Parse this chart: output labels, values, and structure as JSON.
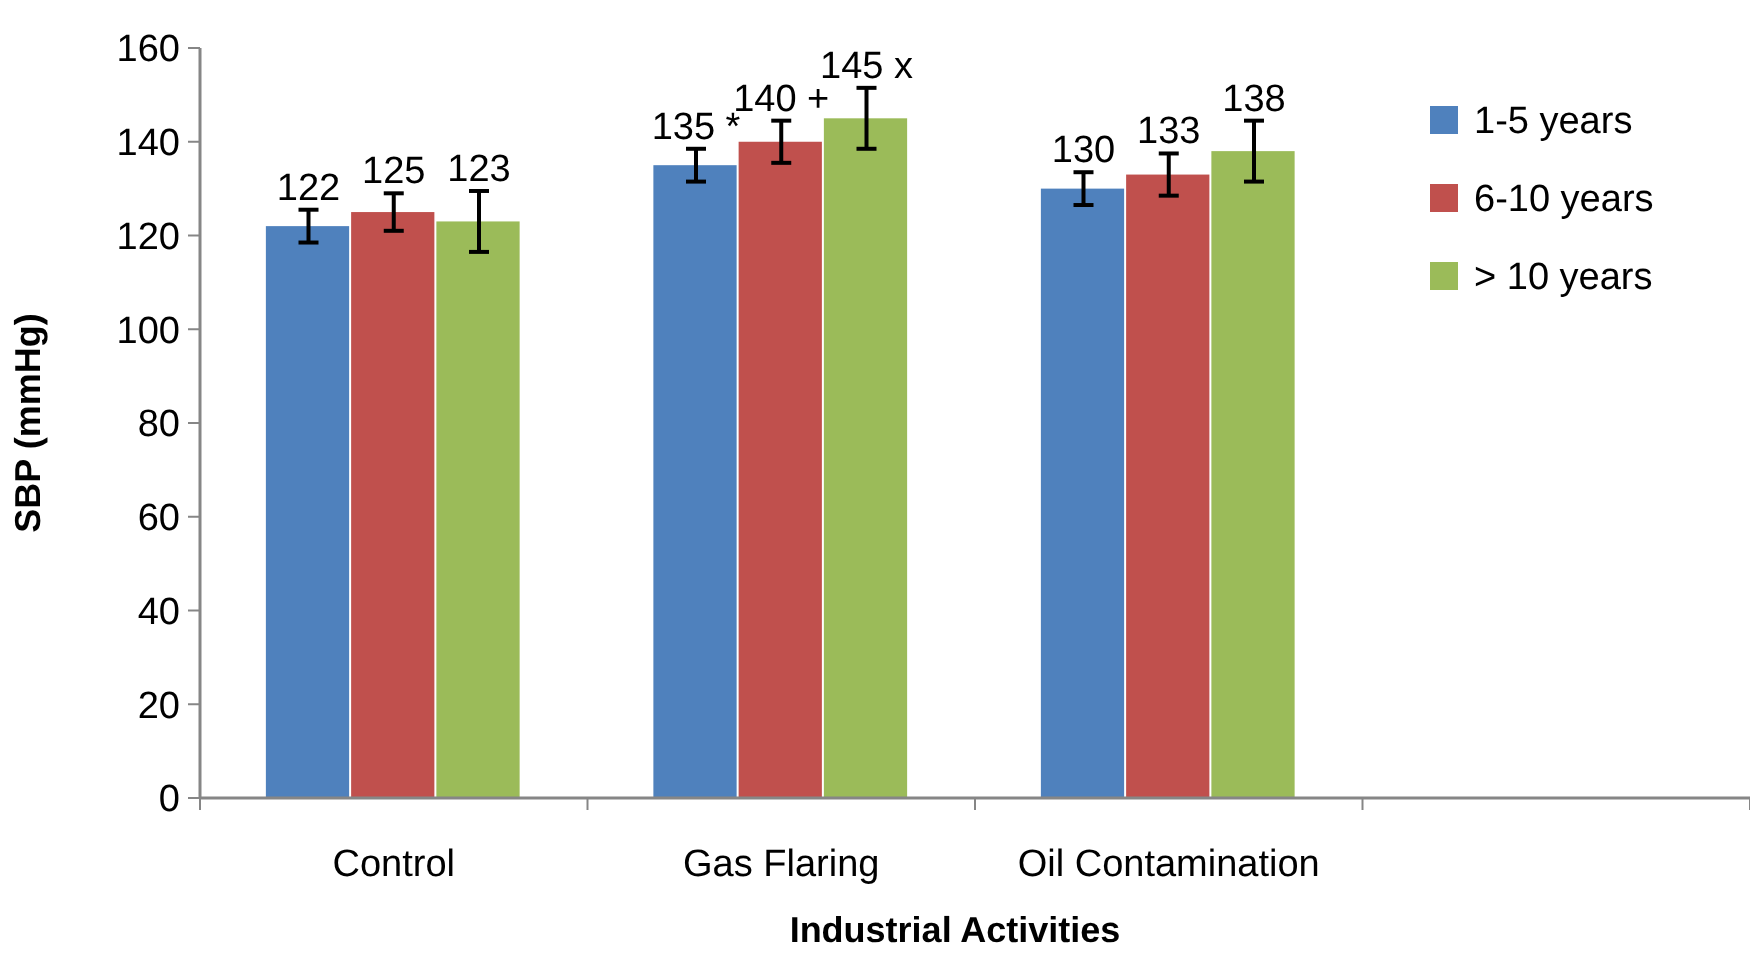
{
  "chart_data": {
    "type": "bar",
    "xlabel": "Industrial Activities",
    "ylabel": "SBP (mmHg)",
    "categories": [
      "Control",
      "Gas Flaring",
      "Oil Contamination",
      null
    ],
    "series": [
      {
        "name": "1-5 years",
        "color": "#4f81bd",
        "values": [
          122,
          135,
          130,
          null
        ],
        "errors": [
          3.5,
          3.5,
          3.5,
          null
        ],
        "value_labels": [
          "122",
          "135 *",
          "130",
          null
        ]
      },
      {
        "name": "6-10 years",
        "color": "#c0504d",
        "values": [
          125,
          140,
          133,
          null
        ],
        "errors": [
          4,
          4.5,
          4.5,
          null
        ],
        "value_labels": [
          "125",
          "140 +",
          "133",
          null
        ]
      },
      {
        "name": "> 10 years",
        "color": "#9bbb59",
        "values": [
          123,
          145,
          138,
          null
        ],
        "errors": [
          6.5,
          6.5,
          6.5,
          null
        ],
        "value_labels": [
          "123",
          "145 x",
          "138",
          null
        ]
      }
    ],
    "ylim": [
      0,
      160
    ],
    "yticks": [
      0,
      20,
      40,
      60,
      80,
      100,
      120,
      140,
      160
    ],
    "grid": false,
    "legend": "right"
  }
}
